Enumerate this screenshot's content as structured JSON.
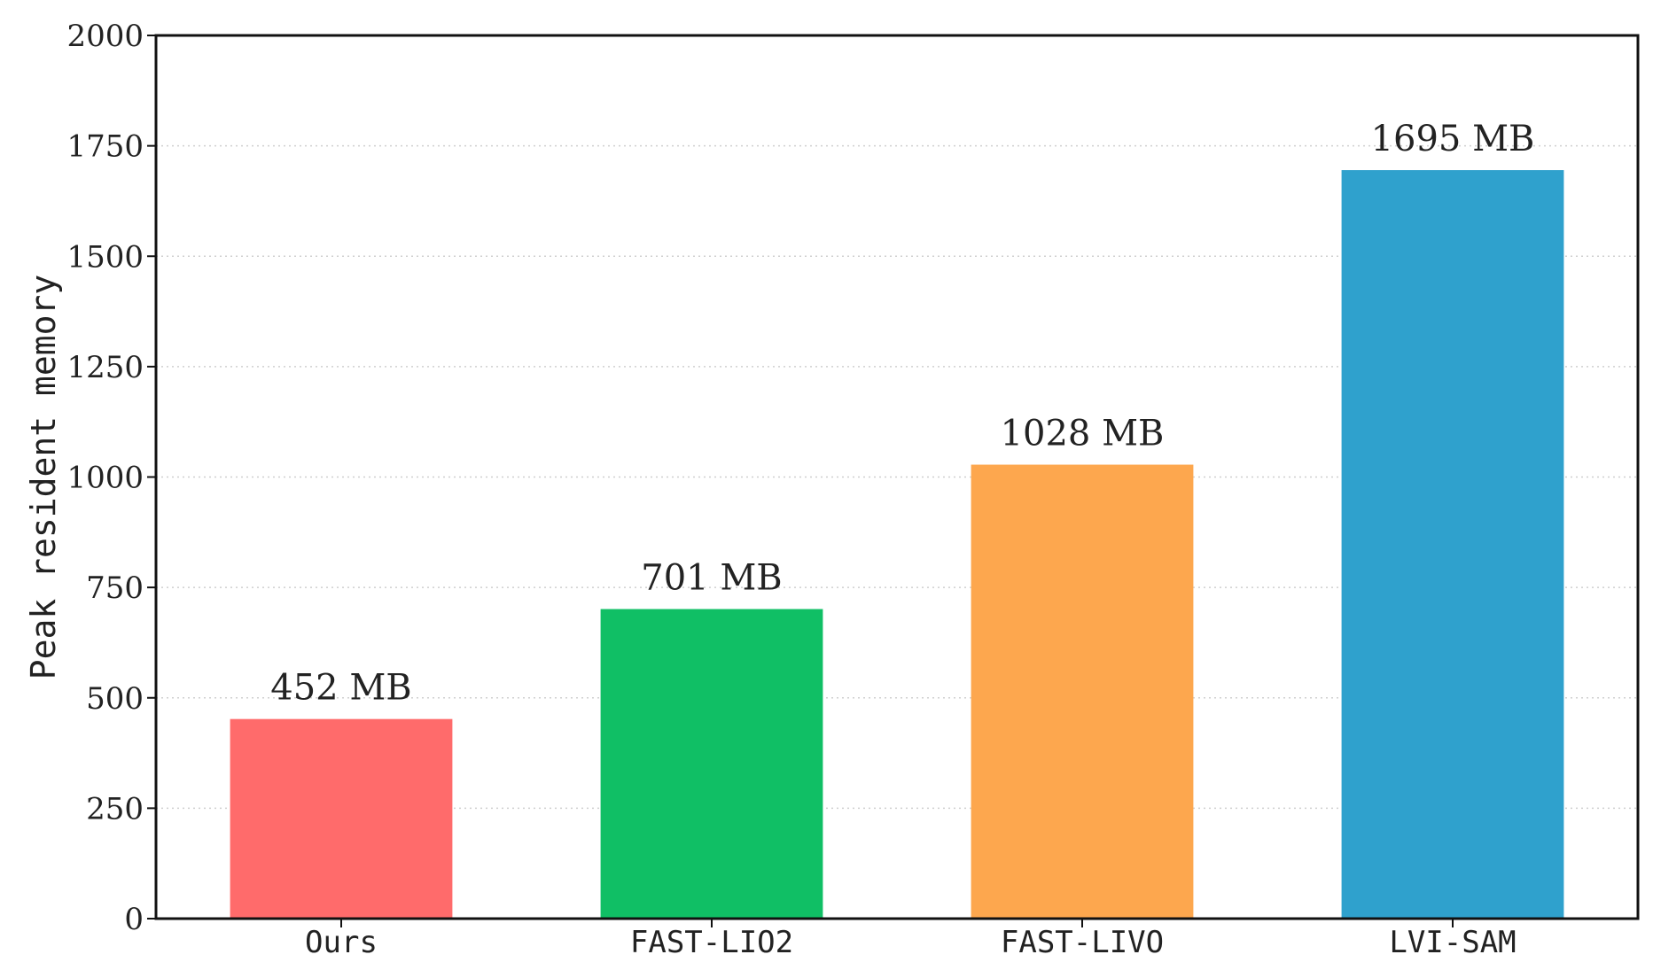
{
  "chart_data": {
    "type": "bar",
    "categories": [
      "Ours",
      "FAST-LIO2",
      "FAST-LIVO",
      "LVI-SAM"
    ],
    "values": [
      452,
      701,
      1028,
      1695
    ],
    "value_labels": [
      "452 MB",
      "701 MB",
      "1028 MB",
      "1695 MB"
    ],
    "bar_colors": [
      "#ff6b6b",
      "#10bf65",
      "#fda74e",
      "#2fa1cd"
    ],
    "ylabel": "Peak resident memory",
    "xlabel": "",
    "ylim": [
      0,
      2000
    ],
    "yticks": [
      0,
      250,
      500,
      750,
      1000,
      1250,
      1500,
      1750,
      2000
    ],
    "grid": "horizontal dotted",
    "legend": "none"
  }
}
